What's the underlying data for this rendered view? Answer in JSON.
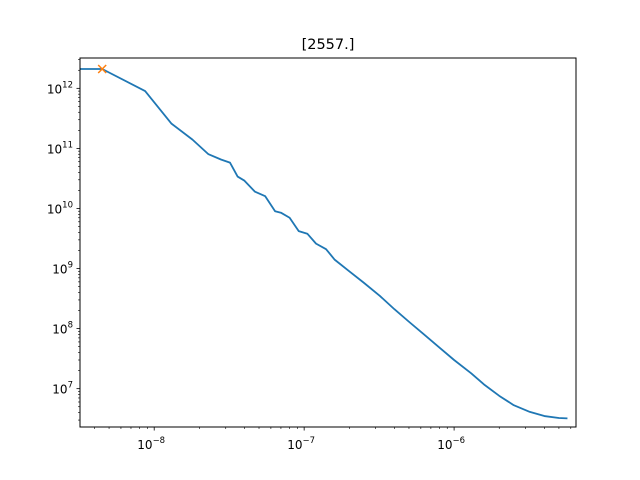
{
  "chart_data": {
    "type": "line",
    "title": "[2557.]",
    "xlabel": "",
    "ylabel": "",
    "xscale": "log",
    "yscale": "log",
    "xlim": [
      3.2e-09,
      6.5e-06
    ],
    "ylim": [
      2300000.0,
      3200000000000.0
    ],
    "grid": false,
    "legend": "none",
    "x_ticks": [
      {
        "base": "10",
        "exp": "−8",
        "value": 1e-08
      },
      {
        "base": "10",
        "exp": "−7",
        "value": 1e-07
      },
      {
        "base": "10",
        "exp": "−6",
        "value": 1e-06
      }
    ],
    "y_ticks": [
      {
        "base": "10",
        "exp": "7",
        "value": 10000000.0
      },
      {
        "base": "10",
        "exp": "8",
        "value": 100000000.0
      },
      {
        "base": "10",
        "exp": "9",
        "value": 1000000000.0
      },
      {
        "base": "10",
        "exp": "10",
        "value": 10000000000.0
      },
      {
        "base": "10",
        "exp": "11",
        "value": 100000000000.0
      },
      {
        "base": "10",
        "exp": "12",
        "value": 1000000000000.0
      }
    ],
    "series": [
      {
        "color": "#1f77b4",
        "x": [
          3.2e-09,
          4.5e-09,
          8.7e-09,
          1.3e-08,
          1.8e-08,
          2.3e-08,
          2.8e-08,
          3.2e-08,
          3.6e-08,
          4e-08,
          4.7e-08,
          5.5e-08,
          6.4e-08,
          7e-08,
          8e-08,
          9.2e-08,
          1.05e-07,
          1.2e-07,
          1.4e-07,
          1.6e-07,
          2e-07,
          2.5e-07,
          3.2e-07,
          4e-07,
          5e-07,
          6.3e-07,
          8e-07,
          1e-06,
          1.3e-06,
          1.6e-06,
          2e-06,
          2.5e-06,
          3.2e-06,
          4e-06,
          5e-06,
          5.7e-06
        ],
        "y": [
          2100000000000.0,
          2100000000000.0,
          900000000000.0,
          260000000000.0,
          140000000000.0,
          80000000000.0,
          65000000000.0,
          58000000000.0,
          34000000000.0,
          29000000000.0,
          19000000000.0,
          16000000000.0,
          9000000000.0,
          8500000000.0,
          7000000000.0,
          4200000000.0,
          3800000000.0,
          2600000000.0,
          2100000000.0,
          1400000000.0,
          900000000.0,
          580000000.0,
          350000000.0,
          210000000.0,
          130000000.0,
          80000000.0,
          48000000.0,
          30000000.0,
          18000000.0,
          11500000.0,
          7600000.0,
          5300000.0,
          4100000.0,
          3500000.0,
          3250000.0,
          3200000.0
        ]
      },
      {
        "color": "#ff7f0e",
        "marker": "x",
        "x": [
          4.5e-09
        ],
        "y": [
          2100000000000.0
        ]
      }
    ]
  }
}
